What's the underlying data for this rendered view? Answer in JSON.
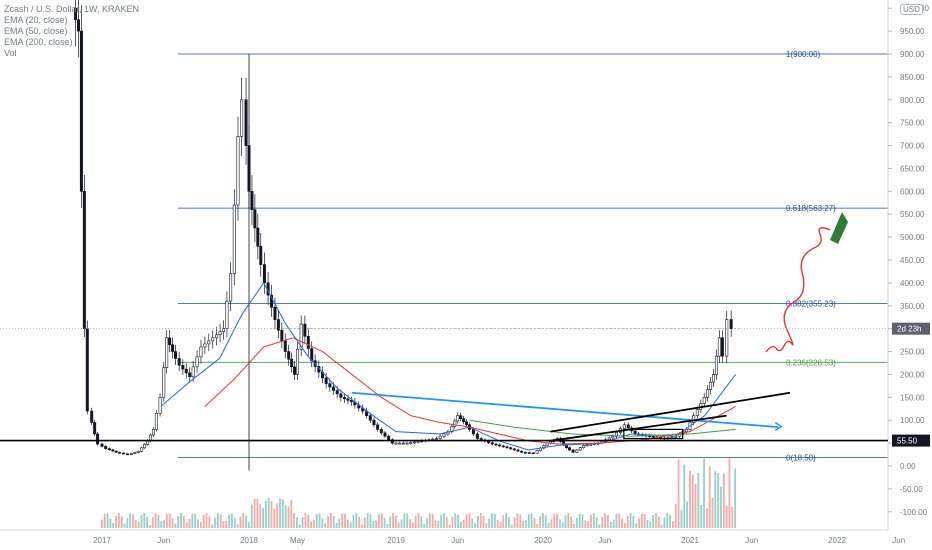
{
  "chart_data": {
    "type": "candlestick",
    "title": "Zcash / U.S. Dollar, 1W, KRAKEN",
    "indicators": [
      "EMA (20, close)",
      "EMA (50, close)",
      "EMA (200, close)",
      "Vol"
    ],
    "currency_button": "USD",
    "y_ticks": [
      "1000.00",
      "950.00",
      "900.00",
      "850.00",
      "800.00",
      "750.00",
      "700.00",
      "650.00",
      "600.00",
      "550.00",
      "500.00",
      "450.00",
      "400.00",
      "350.00",
      "300.00",
      "250.00",
      "200.00",
      "150.00",
      "100.00",
      "50.00",
      "0.00",
      "-50.00",
      "-100.00"
    ],
    "x_ticks": [
      "2017",
      "Jun",
      "2018",
      "May",
      "2019",
      "Jun",
      "2020",
      "Jun",
      "2021",
      "Jun",
      "2022",
      "Jun"
    ],
    "price_tag": "55.50",
    "countdown_tag": "2d 23h",
    "fib_levels": [
      {
        "ratio": "1",
        "value": 900.0,
        "label": "1(900.00)"
      },
      {
        "ratio": "0.618",
        "value": 563.27,
        "label": "0.618(563.27)"
      },
      {
        "ratio": "0.382",
        "value": 355.23,
        "label": "0.382(355.23)"
      },
      {
        "ratio": "0.236",
        "value": 226.53,
        "label": "0.236(226.53)"
      },
      {
        "ratio": "0",
        "value": 18.5,
        "label": "0(18.50)"
      }
    ],
    "support_level": 55.5,
    "price_path": [
      [
        2016.82,
        1000
      ],
      [
        2016.86,
        950
      ],
      [
        2016.88,
        600
      ],
      [
        2016.9,
        300
      ],
      [
        2016.93,
        120
      ],
      [
        2016.97,
        70
      ],
      [
        2017.0,
        48
      ],
      [
        2017.05,
        38
      ],
      [
        2017.12,
        30
      ],
      [
        2017.2,
        25
      ],
      [
        2017.27,
        32
      ],
      [
        2017.33,
        55
      ],
      [
        2017.37,
        80
      ],
      [
        2017.42,
        150
      ],
      [
        2017.46,
        280
      ],
      [
        2017.5,
        250
      ],
      [
        2017.55,
        220
      ],
      [
        2017.62,
        195
      ],
      [
        2017.7,
        260
      ],
      [
        2017.78,
        280
      ],
      [
        2017.85,
        300
      ],
      [
        2017.9,
        420
      ],
      [
        2017.95,
        720
      ],
      [
        2017.98,
        800
      ],
      [
        2018.02,
        600
      ],
      [
        2018.08,
        480
      ],
      [
        2018.13,
        400
      ],
      [
        2018.2,
        320
      ],
      [
        2018.27,
        250
      ],
      [
        2018.33,
        200
      ],
      [
        2018.38,
        310
      ],
      [
        2018.45,
        230
      ],
      [
        2018.55,
        180
      ],
      [
        2018.65,
        150
      ],
      [
        2018.72,
        140
      ],
      [
        2018.8,
        120
      ],
      [
        2018.9,
        80
      ],
      [
        2019.0,
        50
      ],
      [
        2019.1,
        50
      ],
      [
        2019.2,
        55
      ],
      [
        2019.3,
        60
      ],
      [
        2019.38,
        75
      ],
      [
        2019.44,
        110
      ],
      [
        2019.5,
        90
      ],
      [
        2019.58,
        60
      ],
      [
        2019.68,
        48
      ],
      [
        2019.78,
        40
      ],
      [
        2019.88,
        30
      ],
      [
        2019.96,
        28
      ],
      [
        2020.05,
        50
      ],
      [
        2020.12,
        60
      ],
      [
        2020.18,
        40
      ],
      [
        2020.23,
        30
      ],
      [
        2020.3,
        45
      ],
      [
        2020.4,
        50
      ],
      [
        2020.5,
        65
      ],
      [
        2020.58,
        90
      ],
      [
        2020.65,
        70
      ],
      [
        2020.75,
        65
      ],
      [
        2020.85,
        60
      ],
      [
        2020.93,
        65
      ],
      [
        2021.0,
        80
      ],
      [
        2021.05,
        110
      ],
      [
        2021.12,
        150
      ],
      [
        2021.18,
        200
      ],
      [
        2021.22,
        280
      ],
      [
        2021.25,
        240
      ],
      [
        2021.28,
        320
      ],
      [
        2021.31,
        300
      ]
    ],
    "ema20": [
      [
        2017.4,
        130
      ],
      [
        2017.6,
        185
      ],
      [
        2017.8,
        235
      ],
      [
        2017.95,
        330
      ],
      [
        2018.1,
        400
      ],
      [
        2018.25,
        310
      ],
      [
        2018.4,
        240
      ],
      [
        2018.6,
        170
      ],
      [
        2018.8,
        120
      ],
      [
        2019.0,
        75
      ],
      [
        2019.3,
        70
      ],
      [
        2019.5,
        85
      ],
      [
        2019.7,
        55
      ],
      [
        2019.9,
        35
      ],
      [
        2020.1,
        45
      ],
      [
        2020.4,
        50
      ],
      [
        2020.6,
        70
      ],
      [
        2020.9,
        65
      ],
      [
        2021.1,
        110
      ],
      [
        2021.31,
        200
      ]
    ],
    "ema50": [
      [
        2017.7,
        130
      ],
      [
        2017.9,
        190
      ],
      [
        2018.1,
        260
      ],
      [
        2018.3,
        280
      ],
      [
        2018.5,
        250
      ],
      [
        2018.7,
        200
      ],
      [
        2018.9,
        150
      ],
      [
        2019.1,
        110
      ],
      [
        2019.3,
        95
      ],
      [
        2019.5,
        85
      ],
      [
        2019.7,
        70
      ],
      [
        2019.9,
        55
      ],
      [
        2020.1,
        48
      ],
      [
        2020.4,
        50
      ],
      [
        2020.7,
        58
      ],
      [
        2021.0,
        75
      ],
      [
        2021.31,
        130
      ]
    ],
    "ema200": [
      [
        2019.5,
        100
      ],
      [
        2019.8,
        85
      ],
      [
        2020.2,
        70
      ],
      [
        2020.6,
        65
      ],
      [
        2021.0,
        70
      ],
      [
        2021.31,
        80
      ]
    ]
  }
}
